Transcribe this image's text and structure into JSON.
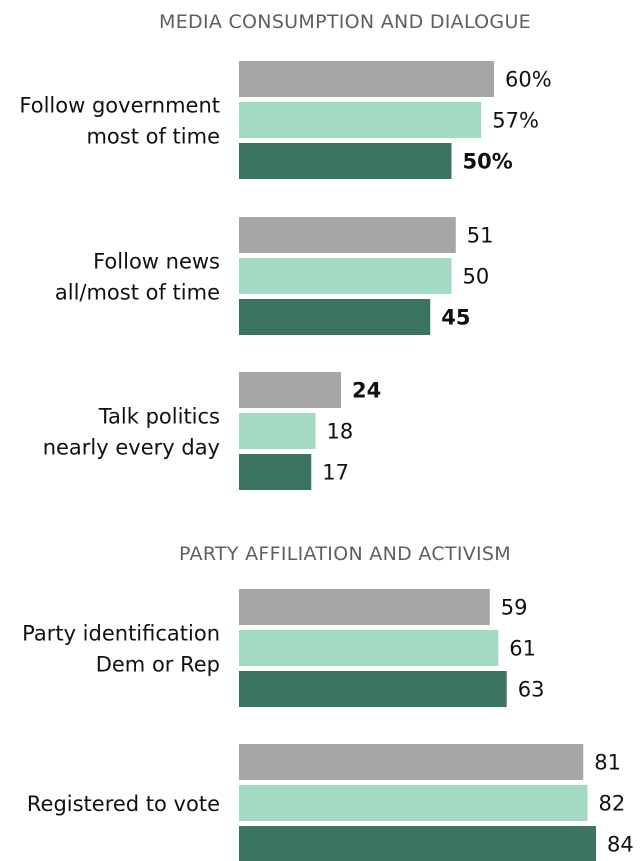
{
  "chart_data": {
    "type": "bar",
    "orientation": "horizontal",
    "xlim": [
      0,
      100
    ],
    "colors": [
      "#a6a6a6",
      "#a2dac4",
      "#3b7562"
    ],
    "sections": [
      {
        "title": "MEDIA CONSUMPTION AND DIALOGUE",
        "groups": [
          {
            "label_lines": [
              "Follow government",
              "most of time"
            ],
            "values": [
              60,
              57,
              50
            ],
            "value_labels": [
              "60%",
              "57%",
              "50%"
            ],
            "bold_index": 2
          },
          {
            "label_lines": [
              "Follow news",
              "all/most of time"
            ],
            "values": [
              51,
              50,
              45
            ],
            "value_labels": [
              "51",
              "50",
              "45"
            ],
            "bold_index": 2
          },
          {
            "label_lines": [
              "Talk politics",
              "nearly every day"
            ],
            "values": [
              24,
              18,
              17
            ],
            "value_labels": [
              "24",
              "18",
              "17"
            ],
            "bold_index": 0
          }
        ]
      },
      {
        "title": "PARTY AFFILIATION AND ACTIVISM",
        "groups": [
          {
            "label_lines": [
              "Party identification",
              "Dem or Rep"
            ],
            "values": [
              59,
              61,
              63
            ],
            "value_labels": [
              "59",
              "61",
              "63"
            ],
            "bold_index": null
          },
          {
            "label_lines": [
              "Registered to vote"
            ],
            "values": [
              81,
              82,
              84
            ],
            "value_labels": [
              "81",
              "82",
              "84"
            ],
            "bold_index": null
          }
        ]
      }
    ]
  }
}
